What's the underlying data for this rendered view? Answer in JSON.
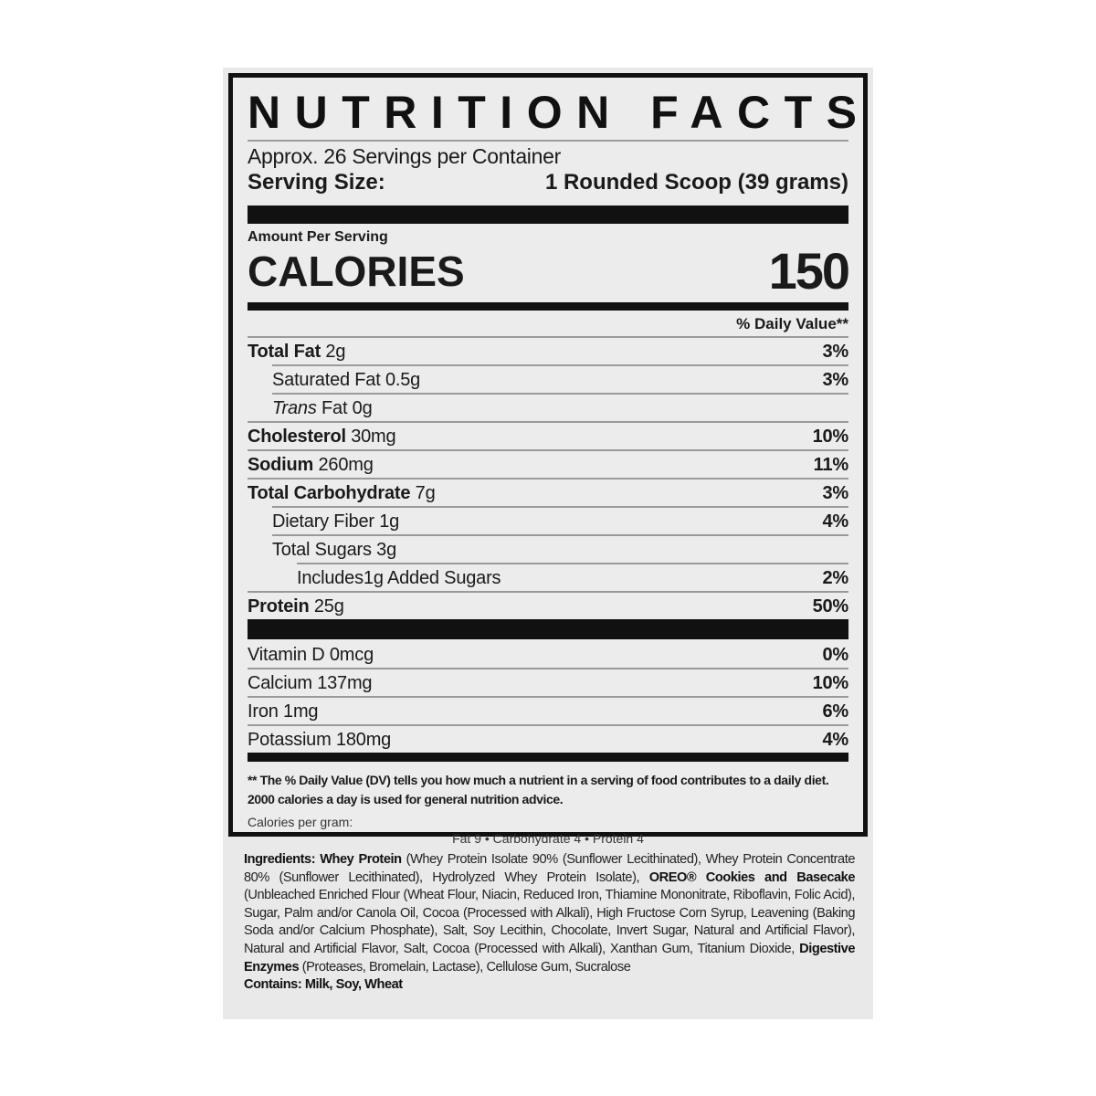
{
  "title": "NUTRITION FACTS",
  "servings": "Approx. 26 Servings per Container",
  "serving_size": {
    "label": "Serving Size:",
    "value": "1 Rounded Scoop (39 grams)"
  },
  "amount_per_serving": "Amount Per Serving",
  "calories": {
    "label": "CALORIES",
    "value": "150"
  },
  "dv_header": "% Daily Value**",
  "nutrients": [
    {
      "name": "Total Fat",
      "amount": "2g",
      "dv": "3%"
    },
    {
      "name": "Saturated Fat",
      "amount": "0.5g",
      "dv": "3%"
    },
    {
      "name": "Trans",
      "amount": "Fat 0g",
      "dv": ""
    },
    {
      "name": "Cholesterol",
      "amount": "30mg",
      "dv": "10%"
    },
    {
      "name": "Sodium",
      "amount": "260mg",
      "dv": "11%"
    },
    {
      "name": "Total Carbohydrate",
      "amount": "7g",
      "dv": "3%"
    },
    {
      "name": "Dietary Fiber",
      "amount": "1g",
      "dv": "4%"
    },
    {
      "name": "Total Sugars",
      "amount": "3g",
      "dv": ""
    },
    {
      "name": "Includes1g Added Sugars",
      "amount": "",
      "dv": "2%"
    },
    {
      "name": "Protein",
      "amount": "25g",
      "dv": "50%"
    }
  ],
  "vitamins": [
    {
      "name": "Vitamin D 0mcg",
      "dv": "0%"
    },
    {
      "name": "Calcium 137mg",
      "dv": "10%"
    },
    {
      "name": "Iron 1mg",
      "dv": "6%"
    },
    {
      "name": "Potassium 180mg",
      "dv": "4%"
    }
  ],
  "footnote": "** The % Daily Value (DV) tells you how much a nutrient in a serving of food contributes to a daily diet. 2000 calories a day is used for general nutrition advice.",
  "calories_per_gram_label": "Calories per gram:",
  "calories_per_gram": "Fat 9 • Carbohydrate 4 • Protein 4",
  "ingredients": [
    "Ingredients: Whey Protein",
    " (Whey Protein Isolate 90% (Sunflower Lecithinated), Whey Protein Concentrate 80% (Sunflower Lecithinated), Hydrolyzed Whey Protein Isolate), ",
    "OREO® Cookies and Basecake",
    " (Unbleached Enriched Flour (Wheat Flour, Niacin, Reduced Iron, Thiamine Mononitrate, Riboflavin, Folic Acid), Sugar, Palm and/or Canola Oil, Cocoa (Processed with Alkali), High Fructose Corn Syrup, Leavening (Baking Soda and/or Calcium Phosphate), Salt, Soy Lecithin, Chocolate, Invert Sugar, Natural and Artificial Flavor), Natural and Artificial Flavor, Salt, Cocoa (Processed with Alkali), Xanthan Gum, Titanium Dioxide, ",
    "Digestive Enzymes",
    " (Proteases, Bromelain, Lactase), Cellulose Gum, Sucralose"
  ],
  "contains": "Contains: Milk, Soy, Wheat"
}
